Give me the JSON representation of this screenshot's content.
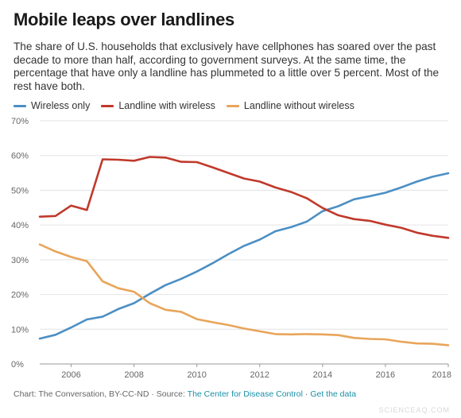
{
  "header": {
    "title": "Mobile leaps over landlines",
    "subtitle": "The share of U.S. households that exclusively have cellphones has soared over the past decade to more than half, according to government surveys. At the same time, the percentage that have only a landline has plummeted to a little over 5 percent. Most of the rest have both."
  },
  "footer": {
    "prefix": "Chart: The Conversation, BY-CC-ND · Source: ",
    "source_link": "The Center for Disease Control",
    "separator": " · ",
    "data_link": "Get the data"
  },
  "watermark": "SCIENCEAQ.COM",
  "chart_data": {
    "type": "line",
    "title": "Mobile leaps over landlines",
    "xlabel": "",
    "ylabel": "",
    "xlim": [
      2005,
      2018
    ],
    "ylim": [
      0,
      70
    ],
    "x_ticks": [
      2006,
      2008,
      2010,
      2012,
      2014,
      2016,
      2018
    ],
    "y_ticks": [
      0,
      10,
      20,
      30,
      40,
      50,
      60,
      70
    ],
    "y_tick_suffix": "%",
    "grid": "horizontal",
    "legend_position": "top-left",
    "x": [
      2005,
      2005.5,
      2006,
      2006.5,
      2007,
      2007.5,
      2008,
      2008.5,
      2009,
      2009.5,
      2010,
      2010.5,
      2011,
      2011.5,
      2012,
      2012.5,
      2013,
      2013.5,
      2014,
      2014.5,
      2015,
      2015.5,
      2016,
      2016.5,
      2017,
      2017.5,
      2018
    ],
    "series": [
      {
        "name": "Wireless only",
        "color": "#4b8fc4",
        "values": [
          7.3,
          8.4,
          10.5,
          12.8,
          13.6,
          15.8,
          17.5,
          20.2,
          22.7,
          24.5,
          26.6,
          29.0,
          31.6,
          34.0,
          35.8,
          38.2,
          39.4,
          41.0,
          44.0,
          45.4,
          47.4,
          48.3,
          49.3,
          50.8,
          52.5,
          53.9,
          54.9
        ]
      },
      {
        "name": "Landline with wireless",
        "color": "#c0392b",
        "values": [
          42.4,
          42.6,
          45.6,
          44.3,
          58.9,
          58.8,
          58.5,
          59.6,
          59.4,
          58.2,
          58.1,
          56.6,
          55.0,
          53.4,
          52.5,
          50.8,
          49.5,
          47.7,
          44.9,
          42.8,
          41.7,
          41.2,
          40.1,
          39.2,
          37.8,
          36.9,
          36.3
        ]
      },
      {
        "name": "Landline without wireless",
        "color": "#e8a55a",
        "values": [
          34.4,
          32.4,
          30.8,
          29.6,
          23.8,
          21.8,
          20.8,
          17.5,
          15.6,
          15.0,
          12.9,
          12.0,
          11.2,
          10.2,
          9.4,
          8.6,
          8.5,
          8.6,
          8.5,
          8.3,
          7.5,
          7.2,
          7.1,
          6.4,
          5.9,
          5.8,
          5.4
        ]
      }
    ]
  }
}
